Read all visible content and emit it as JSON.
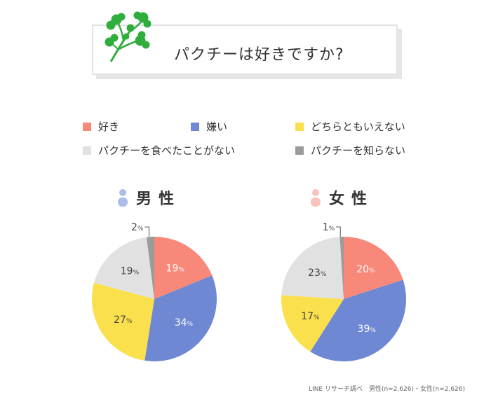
{
  "title": "パクチーは好きですか?",
  "legend": [
    {
      "label": "好き",
      "color": "#f7887a"
    },
    {
      "label": "嫌い",
      "color": "#6f88d4"
    },
    {
      "label": "どちらともいえない",
      "color": "#fbe04e"
    },
    {
      "label": "パクチーを食べたことがない",
      "color": "#e1e1e1"
    },
    {
      "label": "パクチーを知らない",
      "color": "#9b9b9b"
    }
  ],
  "genders": {
    "male": "男性",
    "female": "女性"
  },
  "icon_colors": {
    "male": "#aebde8",
    "female": "#f9c4bd"
  },
  "footnote": "LINE リサーチ調べ　男性(n=2,626)・女性(n=2,626)",
  "chart_data": [
    {
      "type": "pie",
      "title": "男性",
      "categories": [
        "好き",
        "嫌い",
        "どちらともいえない",
        "パクチーを食べたことがない",
        "パクチーを知らない"
      ],
      "values": [
        19,
        34,
        27,
        19,
        2
      ],
      "unit": "%"
    },
    {
      "type": "pie",
      "title": "女性",
      "categories": [
        "好き",
        "嫌い",
        "どちらともいえない",
        "パクチーを食べたことがない",
        "パクチーを知らない"
      ],
      "values": [
        20,
        39,
        17,
        23,
        1
      ],
      "unit": "%"
    }
  ]
}
